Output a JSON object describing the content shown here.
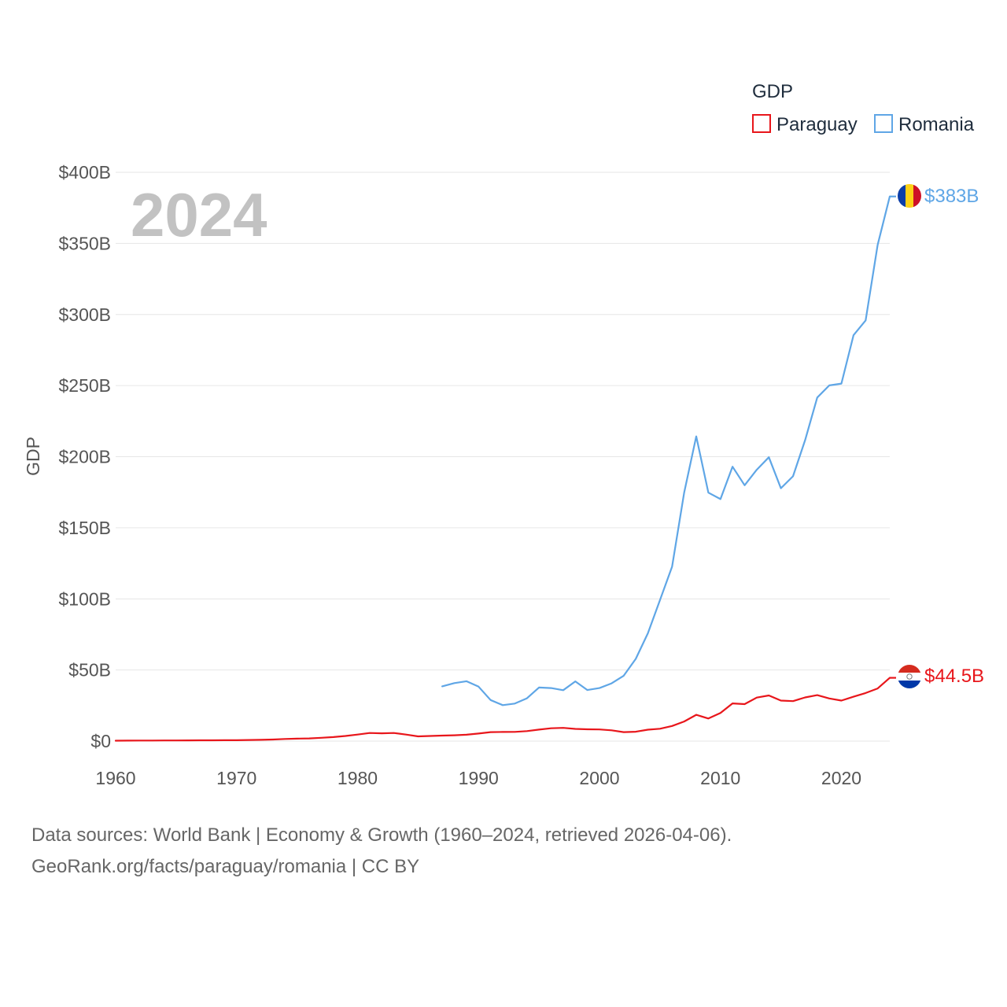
{
  "chart_data": {
    "type": "line",
    "title": "2024",
    "ylabel": "GDP",
    "xlabel": "",
    "xlim": [
      1960,
      2024
    ],
    "ylim": [
      0,
      400
    ],
    "y_ticks": [
      0,
      50,
      100,
      150,
      200,
      250,
      300,
      350,
      400
    ],
    "y_tick_labels": [
      "$0",
      "$50B",
      "$100B",
      "$150B",
      "$200B",
      "$250B",
      "$300B",
      "$350B",
      "$400B"
    ],
    "x_ticks": [
      1960,
      1970,
      1980,
      1990,
      2000,
      2010,
      2020
    ],
    "x_tick_labels": [
      "1960",
      "1970",
      "1980",
      "1990",
      "2000",
      "2010",
      "2020"
    ],
    "legend_title": "GDP",
    "legend_position": "top-right",
    "units": "billions USD",
    "series": [
      {
        "name": "Paraguay",
        "color": "#e8161b",
        "end_label": "$44.5B",
        "flag": "paraguay-flag",
        "x": [
          1960,
          1961,
          1962,
          1963,
          1964,
          1965,
          1966,
          1967,
          1968,
          1969,
          1970,
          1971,
          1972,
          1973,
          1974,
          1975,
          1976,
          1977,
          1978,
          1979,
          1980,
          1981,
          1982,
          1983,
          1984,
          1985,
          1986,
          1987,
          1988,
          1989,
          1990,
          1991,
          1992,
          1993,
          1994,
          1995,
          1996,
          1997,
          1998,
          1999,
          2000,
          2001,
          2002,
          2003,
          2004,
          2005,
          2006,
          2007,
          2008,
          2009,
          2010,
          2011,
          2012,
          2013,
          2014,
          2015,
          2016,
          2017,
          2018,
          2019,
          2020,
          2021,
          2022,
          2023,
          2024
        ],
        "values": [
          0.3,
          0.35,
          0.38,
          0.4,
          0.42,
          0.46,
          0.5,
          0.54,
          0.57,
          0.6,
          0.63,
          0.75,
          0.9,
          1.1,
          1.5,
          1.7,
          1.9,
          2.3,
          2.8,
          3.6,
          4.6,
          5.7,
          5.5,
          5.7,
          4.6,
          3.3,
          3.6,
          3.9,
          4.1,
          4.5,
          5.3,
          6.3,
          6.4,
          6.5,
          7.0,
          8.1,
          9.0,
          9.3,
          8.6,
          8.3,
          8.2,
          7.6,
          6.3,
          6.6,
          8.0,
          8.7,
          10.6,
          13.8,
          18.5,
          15.9,
          19.8,
          26.5,
          26.0,
          30.6,
          32.1,
          28.5,
          28.1,
          30.7,
          32.3,
          30.0,
          28.5,
          31.2,
          33.8,
          37.0,
          44.5
        ]
      },
      {
        "name": "Romania",
        "color": "#5fa6e6",
        "end_label": "$383B",
        "flag": "romania-flag",
        "x": [
          1987,
          1988,
          1989,
          1990,
          1991,
          1992,
          1993,
          1994,
          1995,
          1996,
          1997,
          1998,
          1999,
          2000,
          2001,
          2002,
          2003,
          2004,
          2005,
          2006,
          2007,
          2008,
          2009,
          2010,
          2011,
          2012,
          2013,
          2014,
          2015,
          2016,
          2017,
          2018,
          2019,
          2020,
          2021,
          2022,
          2023,
          2024
        ],
        "values": [
          38.5,
          40.8,
          42.1,
          38.3,
          28.9,
          25.3,
          26.4,
          30.1,
          37.7,
          37.3,
          35.8,
          42.0,
          35.9,
          37.3,
          40.6,
          46.0,
          57.8,
          75.8,
          99.2,
          122.7,
          174.6,
          214.3,
          174.7,
          170.2,
          193.0,
          179.9,
          190.8,
          199.6,
          177.8,
          186.2,
          211.7,
          241.6,
          250.1,
          251.4,
          285.4,
          295.8,
          349.0,
          383.0
        ]
      }
    ]
  },
  "footer": {
    "line1": "Data sources: World Bank | Economy & Growth (1960–2024, retrieved 2026-04-06).",
    "line2": "GeoRank.org/facts/paraguay/romania | CC BY"
  }
}
